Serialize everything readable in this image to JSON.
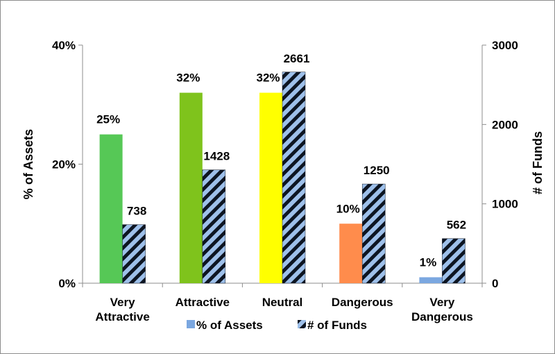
{
  "chart_data": {
    "type": "bar",
    "categories": [
      [
        "Very",
        "Attractive"
      ],
      [
        "Attractive"
      ],
      [
        "Neutral"
      ],
      [
        "Dangerous"
      ],
      [
        "Very",
        "Dangerous"
      ]
    ],
    "series": [
      {
        "name": "% of Assets",
        "axis": "left",
        "values": [
          25,
          32,
          32,
          10,
          1
        ],
        "labels": [
          "25%",
          "32%",
          "32%",
          "10%",
          "1%"
        ],
        "bar_colors": [
          "#56c856",
          "#7fc31c",
          "#ffff00",
          "#ff8c4c",
          "#7ba7e0"
        ],
        "legend_color": "#7ba7e0"
      },
      {
        "name": "# of Funds",
        "axis": "right",
        "values": [
          738,
          1428,
          2661,
          1250,
          562
        ],
        "labels": [
          "738",
          "1428",
          "2661",
          "1250",
          "562"
        ],
        "pattern": "diagonal-stripes",
        "stripe_colors": [
          "#9ec0ea",
          "#0d1522"
        ]
      }
    ],
    "y_left": {
      "label": "% of Assets",
      "ylim": [
        0,
        40
      ],
      "ticks": [
        0,
        20,
        40
      ],
      "tick_labels": [
        "0%",
        "20%",
        "40%"
      ]
    },
    "y_right": {
      "label": "# of Funds",
      "ylim": [
        0,
        3000
      ],
      "ticks": [
        0,
        1000,
        2000,
        3000
      ],
      "tick_labels": [
        "0",
        "1000",
        "2000",
        "3000"
      ]
    },
    "grid": false,
    "legend": {
      "position": "bottom",
      "items": [
        "% of Assets",
        "# of Funds"
      ]
    }
  }
}
